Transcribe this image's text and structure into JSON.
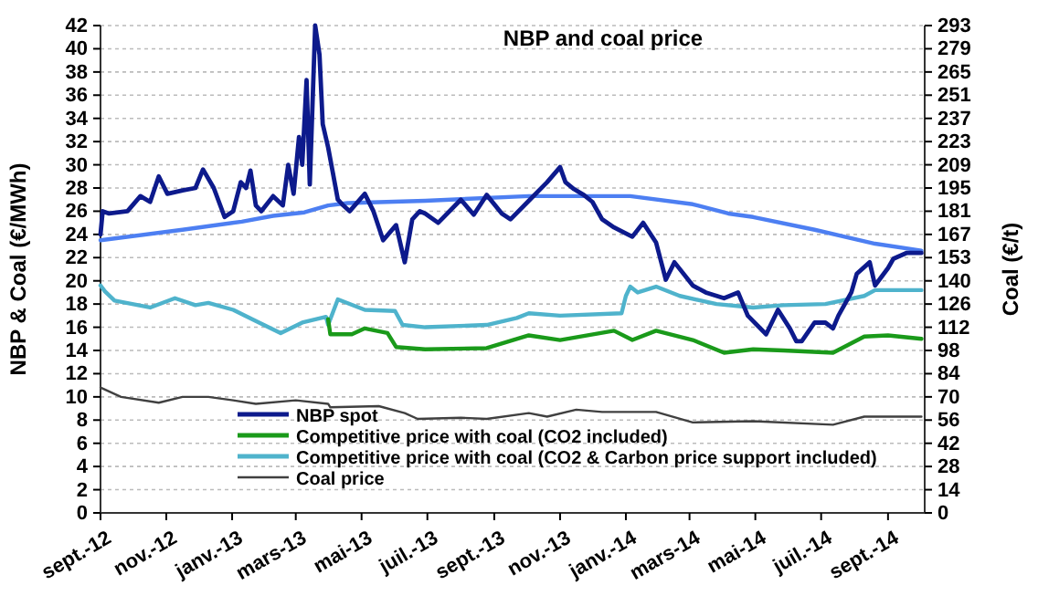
{
  "chart_data": {
    "type": "line",
    "title": "NBP and coal price",
    "ylabel": "NBP & Coal (€/MWh)",
    "y2label": "Coal (€/t)",
    "xlim": [
      "2012-09-01",
      "2014-10-05"
    ],
    "xticks": [
      {
        "value": "2012-09-01",
        "label": "sept.-12"
      },
      {
        "value": "2012-11-01",
        "label": "nov.-12"
      },
      {
        "value": "2013-01-01",
        "label": "janv.-13"
      },
      {
        "value": "2013-03-01",
        "label": "mars-13"
      },
      {
        "value": "2013-05-01",
        "label": "mai-13"
      },
      {
        "value": "2013-07-01",
        "label": "juil.-13"
      },
      {
        "value": "2013-09-01",
        "label": "sept.-13"
      },
      {
        "value": "2013-11-01",
        "label": "nov.-13"
      },
      {
        "value": "2014-01-01",
        "label": "janv.-14"
      },
      {
        "value": "2014-03-01",
        "label": "mars-14"
      },
      {
        "value": "2014-05-01",
        "label": "mai-14"
      },
      {
        "value": "2014-07-01",
        "label": "juil.-14"
      },
      {
        "value": "2014-09-01",
        "label": "sept.-14"
      }
    ],
    "ylim": [
      0,
      42
    ],
    "yticks": [
      0,
      2,
      4,
      6,
      8,
      10,
      12,
      14,
      16,
      18,
      20,
      22,
      24,
      26,
      28,
      30,
      32,
      34,
      36,
      38,
      40,
      42
    ],
    "y2lim": [
      0,
      293
    ],
    "y2ticks": [
      0,
      {
        "value": 13.95,
        "label": "14"
      },
      {
        "value": 27.9,
        "label": "28"
      },
      {
        "value": 41.86,
        "label": "42"
      },
      {
        "value": 55.81,
        "label": "56"
      },
      {
        "value": 69.76,
        "label": "70"
      },
      {
        "value": 83.71,
        "label": "84"
      },
      {
        "value": 97.67,
        "label": "98"
      },
      {
        "value": 111.62,
        "label": "112"
      },
      {
        "value": 125.57,
        "label": "126"
      },
      {
        "value": 139.52,
        "label": "140"
      },
      {
        "value": 153.48,
        "label": "153"
      },
      {
        "value": 167.43,
        "label": "167"
      },
      {
        "value": 181.38,
        "label": "181"
      },
      {
        "value": 195.33,
        "label": "195"
      },
      {
        "value": 209.29,
        "label": "209"
      },
      {
        "value": 223.24,
        "label": "223"
      },
      {
        "value": 237.19,
        "label": "237"
      },
      {
        "value": 251.14,
        "label": "251"
      },
      {
        "value": 265.1,
        "label": "265"
      },
      {
        "value": 279.05,
        "label": "279"
      },
      293
    ],
    "grid": "y",
    "legend": "bottom",
    "line_style": "solid",
    "marker": "none",
    "series": [
      {
        "name": "NBP spot",
        "color": "#0d1a8c",
        "x": [
          "2012-09-01",
          "2012-09-03",
          "2012-09-09",
          "2012-09-26",
          "2012-10-08",
          "2012-10-17",
          "2012-10-25",
          "2012-11-02",
          "2012-11-16",
          "2012-11-28",
          "2012-12-05",
          "2012-12-15",
          "2012-12-25",
          "2013-01-02",
          "2013-01-09",
          "2013-01-14",
          "2013-01-18",
          "2013-01-23",
          "2013-01-28",
          "2013-02-08",
          "2013-02-17",
          "2013-02-22",
          "2013-02-27",
          "2013-03-04",
          "2013-03-07",
          "2013-03-11",
          "2013-03-14",
          "2013-03-19",
          "2013-03-23",
          "2013-03-26",
          "2013-03-31",
          "2013-04-04",
          "2013-04-09",
          "2013-04-14",
          "2013-04-20",
          "2013-05-04",
          "2013-05-12",
          "2013-05-21",
          "2013-06-02",
          "2013-06-10",
          "2013-06-17",
          "2013-06-24",
          "2013-06-29",
          "2013-07-11",
          "2013-08-01",
          "2013-08-13",
          "2013-08-25",
          "2013-09-08",
          "2013-09-16",
          "2013-10-03",
          "2013-10-20",
          "2013-11-01",
          "2013-11-06",
          "2013-11-14",
          "2013-11-23",
          "2013-12-01",
          "2013-12-10",
          "2013-12-21",
          "2014-01-07",
          "2014-01-17",
          "2014-01-29",
          "2014-02-07",
          "2014-02-15",
          "2014-03-04",
          "2014-03-16",
          "2014-04-02",
          "2014-04-15",
          "2014-04-24",
          "2014-05-11",
          "2014-05-22",
          "2014-06-02",
          "2014-06-08",
          "2014-06-13",
          "2014-06-25",
          "2014-07-05",
          "2014-07-12",
          "2014-07-17",
          "2014-07-29",
          "2014-08-03",
          "2014-08-15",
          "2014-08-20",
          "2014-09-01",
          "2014-09-06",
          "2014-09-18",
          "2014-09-26",
          "2014-10-02"
        ],
        "values": [
          24,
          26,
          25.8,
          26,
          27.3,
          26.8,
          29,
          27.5,
          27.8,
          28,
          29.6,
          28,
          25.5,
          26,
          28.5,
          28,
          29.5,
          26.5,
          26,
          27.3,
          26.5,
          30,
          27.5,
          32.4,
          30,
          37.3,
          28.3,
          42,
          39.5,
          33.5,
          31.5,
          29.5,
          27,
          26.5,
          26,
          27.5,
          26,
          23.5,
          24.8,
          21.6,
          25.3,
          26,
          25.8,
          25,
          27,
          25.7,
          27.4,
          25.8,
          25.3,
          26.9,
          28.5,
          29.8,
          28.5,
          27.9,
          27.4,
          26.8,
          25.3,
          24.6,
          23.8,
          25,
          23.3,
          20.1,
          21.6,
          19.6,
          19,
          18.5,
          19,
          17,
          15.4,
          17.5,
          15.9,
          14.8,
          14.8,
          16.4,
          16.4,
          15.9,
          17,
          19,
          20.6,
          21.6,
          19.6,
          21.1,
          21.9,
          22.4,
          22.4,
          22.4
        ]
      },
      {
        "color": "#4d7ff2",
        "x": [
          "2012-09-01",
          "2012-11-16",
          "2013-01-10",
          "2013-02-08",
          "2013-03-09",
          "2013-03-31",
          "2013-04-18",
          "2013-06-29",
          "2013-10-03",
          "2014-01-05",
          "2014-03-04",
          "2014-04-06",
          "2014-04-29",
          "2014-06-25",
          "2014-08-20",
          "2014-10-02"
        ],
        "values": [
          23.5,
          24.4,
          25.1,
          25.6,
          25.9,
          26.5,
          26.7,
          26.9,
          27.3,
          27.3,
          26.6,
          25.8,
          25.5,
          24.4,
          23.2,
          22.6
        ]
      },
      {
        "name": "Competitive price with coal (CO2 included)",
        "color": "#1a9a1a",
        "x": [
          "2013-03-31",
          "2013-04-02",
          "2013-04-22",
          "2013-05-04",
          "2013-05-25",
          "2013-06-02",
          "2013-06-29",
          "2013-08-25",
          "2013-10-03",
          "2013-11-01",
          "2013-12-21",
          "2014-01-07",
          "2014-01-29",
          "2014-03-04",
          "2014-04-02",
          "2014-04-29",
          "2014-05-27",
          "2014-07-12",
          "2014-08-10",
          "2014-09-01",
          "2014-10-02"
        ],
        "values": [
          16.7,
          15.4,
          15.4,
          15.9,
          15.5,
          14.3,
          14.1,
          14.2,
          15.3,
          14.9,
          15.7,
          14.9,
          15.7,
          14.9,
          13.8,
          14.1,
          14,
          13.8,
          15.2,
          15.3,
          15
        ]
      },
      {
        "name": "Competitive price with coal (CO2 & Carbon price support included)",
        "color": "#4fb3cc",
        "x": [
          "2012-09-01",
          "2012-09-05",
          "2012-09-14",
          "2012-10-17",
          "2012-11-09",
          "2012-11-28",
          "2012-12-10",
          "2013-01-02",
          "2013-01-26",
          "2013-02-15",
          "2013-03-07",
          "2013-03-29",
          "2013-03-31",
          "2013-04-09",
          "2013-05-04",
          "2013-06-01",
          "2013-06-08",
          "2013-06-29",
          "2013-08-25",
          "2013-09-22",
          "2013-10-03",
          "2013-11-01",
          "2013-12-28",
          "2014-01-01",
          "2014-01-05",
          "2014-01-12",
          "2014-01-29",
          "2014-02-20",
          "2014-03-26",
          "2014-04-29",
          "2014-05-27",
          "2014-07-05",
          "2014-08-10",
          "2014-08-20",
          "2014-10-02"
        ],
        "values": [
          19.6,
          19.1,
          18.3,
          17.7,
          18.5,
          17.9,
          18.1,
          17.5,
          16.4,
          15.5,
          16.4,
          16.9,
          16.2,
          18.4,
          17.5,
          17.4,
          16.2,
          16,
          16.2,
          16.8,
          17.2,
          17,
          17.2,
          18.7,
          19.5,
          19,
          19.5,
          18.7,
          18,
          17.7,
          17.9,
          18,
          18.7,
          19.2,
          19.2
        ]
      },
      {
        "name": "Coal price",
        "color": "#404040",
        "x": [
          "2012-09-01",
          "2012-09-20",
          "2012-10-25",
          "2012-11-16",
          "2012-12-10",
          "2013-01-02",
          "2013-01-23",
          "2013-03-01",
          "2013-03-31",
          "2013-04-02",
          "2013-05-17",
          "2013-06-10",
          "2013-06-22",
          "2013-08-01",
          "2013-08-25",
          "2013-10-03",
          "2013-10-20",
          "2013-11-16",
          "2013-12-10",
          "2014-01-29",
          "2014-03-04",
          "2014-04-29",
          "2014-07-12",
          "2014-08-10",
          "2014-10-02"
        ],
        "values": [
          10.8,
          10,
          9.5,
          10,
          10,
          9.7,
          9.4,
          9.7,
          9.4,
          9.1,
          9.2,
          8.6,
          8.1,
          8.2,
          8.1,
          8.6,
          8.3,
          8.9,
          8.7,
          8.7,
          7.8,
          7.9,
          7.6,
          8.3,
          8.3
        ]
      }
    ]
  }
}
